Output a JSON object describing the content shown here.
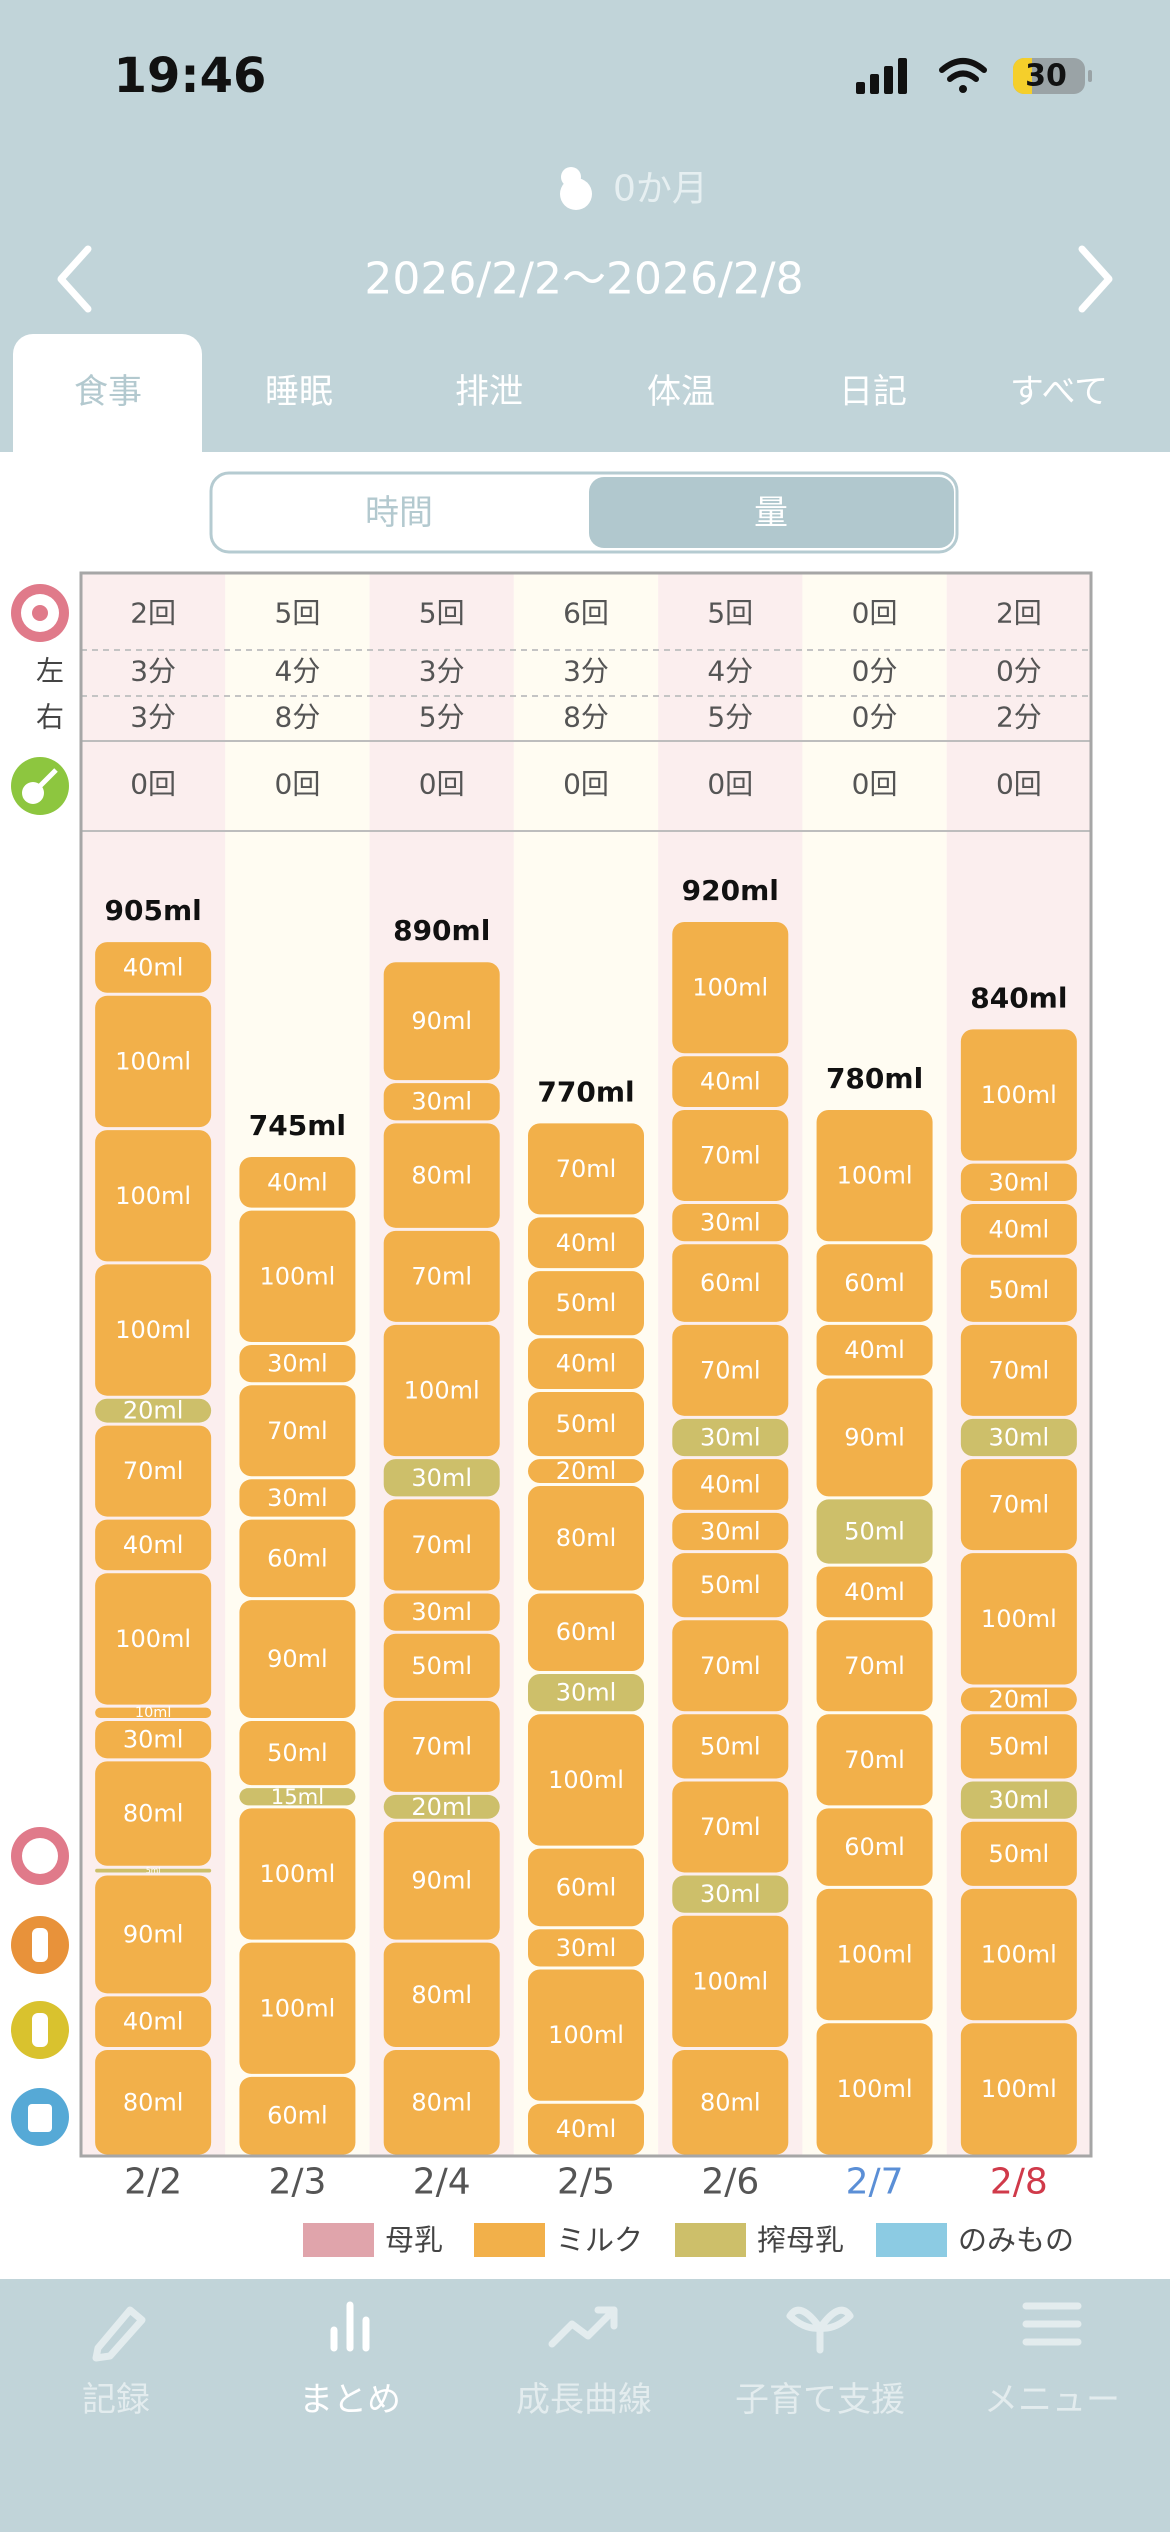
{
  "status_bar": {
    "time": "19:46",
    "battery": "30"
  },
  "header": {
    "age": "0か月",
    "date_range": "2026/2/2〜2026/2/8"
  },
  "tabs": [
    "食事",
    "睡眠",
    "排泄",
    "体温",
    "日記",
    "すべて"
  ],
  "toggle": [
    "時間",
    "量"
  ],
  "table": {
    "side_labels": [
      "左",
      "右"
    ],
    "rows": [
      [
        "2回",
        "5回",
        "5回",
        "6回",
        "5回",
        "0回",
        "2回"
      ],
      [
        "3分",
        "4分",
        "3分",
        "3分",
        "4分",
        "0分",
        "0分"
      ],
      [
        "3分",
        "8分",
        "5分",
        "8分",
        "5分",
        "0分",
        "2分"
      ],
      [
        "0回",
        "0回",
        "0回",
        "0回",
        "0回",
        "0回",
        "0回"
      ]
    ]
  },
  "chart_data": {
    "type": "bar",
    "stacked": true,
    "categories": [
      "2/2",
      "2/3",
      "2/4",
      "2/5",
      "2/6",
      "2/7",
      "2/8"
    ],
    "category_colors": [
      "#555555",
      "#555555",
      "#555555",
      "#555555",
      "#555555",
      "#5b8fd6",
      "#d03a4a"
    ],
    "ylim": [
      0,
      1000
    ],
    "totals": [
      905,
      745,
      890,
      770,
      920,
      780,
      840
    ],
    "total_labels": [
      "905ml",
      "745ml",
      "890ml",
      "770ml",
      "920ml",
      "780ml",
      "840ml"
    ],
    "stacks": [
      [
        {
          "value": 40,
          "label": "40ml",
          "color": "#f2b04a"
        },
        {
          "value": 100,
          "label": "100ml",
          "color": "#f2b04a"
        },
        {
          "value": 100,
          "label": "100ml",
          "color": "#f2b04a"
        },
        {
          "value": 100,
          "label": "100ml",
          "color": "#f2b04a"
        },
        {
          "value": 20,
          "label": "20ml",
          "color": "#cdbf6a"
        },
        {
          "value": 70,
          "label": "70ml",
          "color": "#f2b04a"
        },
        {
          "value": 40,
          "label": "40ml",
          "color": "#f2b04a"
        },
        {
          "value": 100,
          "label": "100ml",
          "color": "#f2b04a"
        },
        {
          "value": 10,
          "label": "10ml",
          "color": "#f2b04a"
        },
        {
          "value": 30,
          "label": "30ml",
          "color": "#f2b04a"
        },
        {
          "value": 80,
          "label": "80ml",
          "color": "#f2b04a"
        },
        {
          "value": 5,
          "label": "5ml",
          "color": "#cdbf6a"
        },
        {
          "value": 90,
          "label": "90ml",
          "color": "#f2b04a"
        },
        {
          "value": 40,
          "label": "40ml",
          "color": "#f2b04a"
        },
        {
          "value": 80,
          "label": "80ml",
          "color": "#f2b04a"
        }
      ],
      [
        {
          "value": 40,
          "label": "40ml",
          "color": "#f2b04a"
        },
        {
          "value": 100,
          "label": "100ml",
          "color": "#f2b04a"
        },
        {
          "value": 30,
          "label": "30ml",
          "color": "#f2b04a"
        },
        {
          "value": 70,
          "label": "70ml",
          "color": "#f2b04a"
        },
        {
          "value": 30,
          "label": "30ml",
          "color": "#f2b04a"
        },
        {
          "value": 60,
          "label": "60ml",
          "color": "#f2b04a"
        },
        {
          "value": 90,
          "label": "90ml",
          "color": "#f2b04a"
        },
        {
          "value": 50,
          "label": "50ml",
          "color": "#f2b04a"
        },
        {
          "value": 15,
          "label": "15ml",
          "color": "#cdbf6a"
        },
        {
          "value": 100,
          "label": "100ml",
          "color": "#f2b04a"
        },
        {
          "value": 100,
          "label": "100ml",
          "color": "#f2b04a"
        },
        {
          "value": 60,
          "label": "60ml",
          "color": "#f2b04a"
        }
      ],
      [
        {
          "value": 90,
          "label": "90ml",
          "color": "#f2b04a"
        },
        {
          "value": 30,
          "label": "30ml",
          "color": "#f2b04a"
        },
        {
          "value": 80,
          "label": "80ml",
          "color": "#f2b04a"
        },
        {
          "value": 70,
          "label": "70ml",
          "color": "#f2b04a"
        },
        {
          "value": 100,
          "label": "100ml",
          "color": "#f2b04a"
        },
        {
          "value": 30,
          "label": "30ml",
          "color": "#cdbf6a"
        },
        {
          "value": 70,
          "label": "70ml",
          "color": "#f2b04a"
        },
        {
          "value": 30,
          "label": "30ml",
          "color": "#f2b04a"
        },
        {
          "value": 50,
          "label": "50ml",
          "color": "#f2b04a"
        },
        {
          "value": 70,
          "label": "70ml",
          "color": "#f2b04a"
        },
        {
          "value": 20,
          "label": "20ml",
          "color": "#cdbf6a"
        },
        {
          "value": 90,
          "label": "90ml",
          "color": "#f2b04a"
        },
        {
          "value": 80,
          "label": "80ml",
          "color": "#f2b04a"
        },
        {
          "value": 80,
          "label": "80ml",
          "color": "#f2b04a"
        }
      ],
      [
        {
          "value": 70,
          "label": "70ml",
          "color": "#f2b04a"
        },
        {
          "value": 40,
          "label": "40ml",
          "color": "#f2b04a"
        },
        {
          "value": 50,
          "label": "50ml",
          "color": "#f2b04a"
        },
        {
          "value": 40,
          "label": "40ml",
          "color": "#f2b04a"
        },
        {
          "value": 50,
          "label": "50ml",
          "color": "#f2b04a"
        },
        {
          "value": 20,
          "label": "20ml",
          "color": "#f2b04a"
        },
        {
          "value": 80,
          "label": "80ml",
          "color": "#f2b04a"
        },
        {
          "value": 60,
          "label": "60ml",
          "color": "#f2b04a"
        },
        {
          "value": 30,
          "label": "30ml",
          "color": "#cdbf6a"
        },
        {
          "value": 100,
          "label": "100ml",
          "color": "#f2b04a"
        },
        {
          "value": 60,
          "label": "60ml",
          "color": "#f2b04a"
        },
        {
          "value": 30,
          "label": "30ml",
          "color": "#f2b04a"
        },
        {
          "value": 100,
          "label": "100ml",
          "color": "#f2b04a"
        },
        {
          "value": 40,
          "label": "40ml",
          "color": "#f2b04a"
        }
      ],
      [
        {
          "value": 100,
          "label": "100ml",
          "color": "#f2b04a"
        },
        {
          "value": 40,
          "label": "40ml",
          "color": "#f2b04a"
        },
        {
          "value": 70,
          "label": "70ml",
          "color": "#f2b04a"
        },
        {
          "value": 30,
          "label": "30ml",
          "color": "#f2b04a"
        },
        {
          "value": 60,
          "label": "60ml",
          "color": "#f2b04a"
        },
        {
          "value": 70,
          "label": "70ml",
          "color": "#f2b04a"
        },
        {
          "value": 30,
          "label": "30ml",
          "color": "#cdbf6a"
        },
        {
          "value": 40,
          "label": "40ml",
          "color": "#f2b04a"
        },
        {
          "value": 30,
          "label": "30ml",
          "color": "#f2b04a"
        },
        {
          "value": 50,
          "label": "50ml",
          "color": "#f2b04a"
        },
        {
          "value": 70,
          "label": "70ml",
          "color": "#f2b04a"
        },
        {
          "value": 50,
          "label": "50ml",
          "color": "#f2b04a"
        },
        {
          "value": 70,
          "label": "70ml",
          "color": "#f2b04a"
        },
        {
          "value": 30,
          "label": "30ml",
          "color": "#cdbf6a"
        },
        {
          "value": 100,
          "label": "100ml",
          "color": "#f2b04a"
        },
        {
          "value": 80,
          "label": "80ml",
          "color": "#f2b04a"
        }
      ],
      [
        {
          "value": 100,
          "label": "100ml",
          "color": "#f2b04a"
        },
        {
          "value": 60,
          "label": "60ml",
          "color": "#f2b04a"
        },
        {
          "value": 40,
          "label": "40ml",
          "color": "#f2b04a"
        },
        {
          "value": 90,
          "label": "90ml",
          "color": "#f2b04a"
        },
        {
          "value": 50,
          "label": "50ml",
          "color": "#cdbf6a"
        },
        {
          "value": 40,
          "label": "40ml",
          "color": "#f2b04a"
        },
        {
          "value": 70,
          "label": "70ml",
          "color": "#f2b04a"
        },
        {
          "value": 70,
          "label": "70ml",
          "color": "#f2b04a"
        },
        {
          "value": 60,
          "label": "60ml",
          "color": "#f2b04a"
        },
        {
          "value": 100,
          "label": "100ml",
          "color": "#f2b04a"
        },
        {
          "value": 100,
          "label": "100ml",
          "color": "#f2b04a"
        }
      ],
      [
        {
          "value": 100,
          "label": "100ml",
          "color": "#f2b04a"
        },
        {
          "value": 30,
          "label": "30ml",
          "color": "#f2b04a"
        },
        {
          "value": 40,
          "label": "40ml",
          "color": "#f2b04a"
        },
        {
          "value": 50,
          "label": "50ml",
          "color": "#f2b04a"
        },
        {
          "value": 70,
          "label": "70ml",
          "color": "#f2b04a"
        },
        {
          "value": 30,
          "label": "30ml",
          "color": "#cdbf6a"
        },
        {
          "value": 70,
          "label": "70ml",
          "color": "#f2b04a"
        },
        {
          "value": 100,
          "label": "100ml",
          "color": "#f2b04a"
        },
        {
          "value": 20,
          "label": "20ml",
          "color": "#f2b04a"
        },
        {
          "value": 50,
          "label": "50ml",
          "color": "#f2b04a"
        },
        {
          "value": 30,
          "label": "30ml",
          "color": "#cdbf6a"
        },
        {
          "value": 50,
          "label": "50ml",
          "color": "#f2b04a"
        },
        {
          "value": 100,
          "label": "100ml",
          "color": "#f2b04a"
        },
        {
          "value": 100,
          "label": "100ml",
          "color": "#f2b04a"
        }
      ]
    ],
    "legend": [
      {
        "name": "母乳",
        "color": "#e0a4ab"
      },
      {
        "name": "ミルク",
        "color": "#f2b04a"
      },
      {
        "name": "搾母乳",
        "color": "#cdbf6a"
      },
      {
        "name": "のみもの",
        "color": "#8ccbe3"
      }
    ]
  },
  "nav": [
    "記録",
    "まとめ",
    "成長曲線",
    "子育て支援",
    "メニュー"
  ]
}
